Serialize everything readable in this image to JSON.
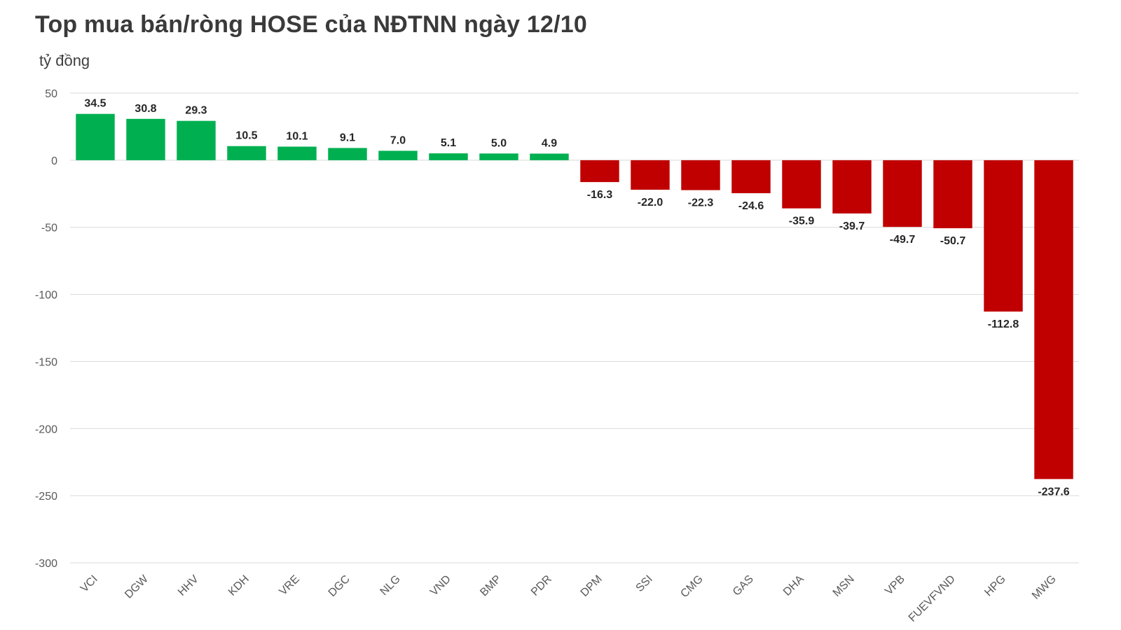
{
  "chart_data": {
    "type": "bar",
    "title": "Top mua bán/ròng HOSE của NĐTNN ngày 12/10",
    "ylabel": "tỷ đồng",
    "categories": [
      "VCI",
      "DGW",
      "HHV",
      "KDH",
      "VRE",
      "DGC",
      "NLG",
      "VND",
      "BMP",
      "PDR",
      "DPM",
      "SSI",
      "CMG",
      "GAS",
      "DHA",
      "MSN",
      "VPB",
      "FUEVFVND",
      "HPG",
      "MWG"
    ],
    "values": [
      34.5,
      30.8,
      29.3,
      10.5,
      10.1,
      9.1,
      7.0,
      5.1,
      5.0,
      4.9,
      -16.3,
      -22.0,
      -22.3,
      -24.6,
      -35.9,
      -39.7,
      -49.7,
      -50.7,
      -112.8,
      -237.6
    ],
    "value_labels": [
      "34.5",
      "30.8",
      "29.3",
      "10.5",
      "10.1",
      "9.1",
      "7.0",
      "5.1",
      "5.0",
      "4.9",
      "-16.3",
      "-22.0",
      "-22.3",
      "-24.6",
      "-35.9",
      "-39.7",
      "-49.7",
      "-50.7",
      "-112.8",
      "-237.6"
    ],
    "ylim": [
      -300,
      50
    ],
    "yticks": [
      "50",
      "0",
      "-50",
      "-100",
      "-150",
      "-200",
      "-250",
      "-300"
    ],
    "grid": true,
    "colors": {
      "positive": "#00b050",
      "negative": "#c00000",
      "grid": "#d9d9d9"
    }
  }
}
